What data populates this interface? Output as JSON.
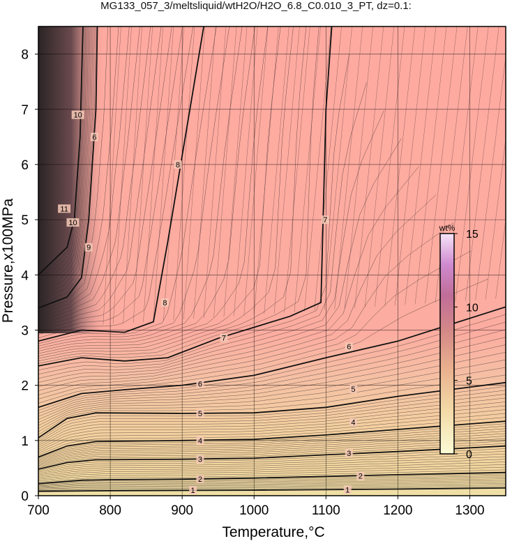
{
  "chart_data": {
    "type": "heatmap",
    "title": "MG133_057_3/meltsliquid/wtH2O/H2O_6.8_C0.010_3_PT, dz=0.1:",
    "xlabel": "Temperature,°C",
    "ylabel": "Pressure,x100MPa",
    "xlim": [
      700,
      1350
    ],
    "ylim": [
      0,
      8.5
    ],
    "xticks": [
      "700",
      "800",
      "900",
      "1000",
      "1100",
      "1200",
      "1300"
    ],
    "yticks": [
      "0",
      "1",
      "2",
      "3",
      "4",
      "5",
      "6",
      "7",
      "8"
    ],
    "grid": true,
    "colorbar": {
      "unit": "wt%",
      "range": [
        0,
        15
      ],
      "ticks": [
        "0",
        "5",
        "10",
        "15"
      ],
      "placement": "right-inside",
      "colors": [
        "#fbfbd6",
        "#f0c89a",
        "#e8a08a",
        "#c97a8e",
        "#c07ab8",
        "#f7e2f7"
      ]
    },
    "contours": [
      {
        "level": "1",
        "points": [
          [
            700,
            0.08
          ],
          [
            800,
            0.09
          ],
          [
            1000,
            0.1
          ],
          [
            1200,
            0.12
          ],
          [
            1350,
            0.14
          ]
        ]
      },
      {
        "level": "2",
        "points": [
          [
            700,
            0.22
          ],
          [
            760,
            0.28
          ],
          [
            800,
            0.29
          ],
          [
            900,
            0.3
          ],
          [
            1000,
            0.32
          ],
          [
            1100,
            0.35
          ],
          [
            1200,
            0.38
          ],
          [
            1350,
            0.42
          ]
        ]
      },
      {
        "level": "3",
        "points": [
          [
            700,
            0.48
          ],
          [
            740,
            0.6
          ],
          [
            780,
            0.65
          ],
          [
            900,
            0.66
          ],
          [
            1000,
            0.68
          ],
          [
            1100,
            0.74
          ],
          [
            1200,
            0.8
          ],
          [
            1350,
            0.9
          ]
        ]
      },
      {
        "level": "4",
        "points": [
          [
            700,
            0.7
          ],
          [
            740,
            0.9
          ],
          [
            780,
            0.98
          ],
          [
            900,
            1.0
          ],
          [
            1000,
            1.02
          ],
          [
            1100,
            1.1
          ],
          [
            1200,
            1.2
          ],
          [
            1350,
            1.35
          ]
        ]
      },
      {
        "level": "5",
        "points": [
          [
            700,
            1.05
          ],
          [
            740,
            1.4
          ],
          [
            780,
            1.5
          ],
          [
            900,
            1.49
          ],
          [
            1000,
            1.5
          ],
          [
            1100,
            1.6
          ],
          [
            1200,
            1.8
          ],
          [
            1350,
            2.05
          ]
        ]
      },
      {
        "level": "6",
        "points": [
          [
            700,
            1.6
          ],
          [
            760,
            1.85
          ],
          [
            820,
            1.92
          ],
          [
            900,
            2.0
          ],
          [
            1000,
            2.18
          ],
          [
            1100,
            2.5
          ],
          [
            1200,
            2.8
          ],
          [
            1350,
            3.42
          ]
        ]
      },
      {
        "level": "7",
        "points": [
          [
            700,
            2.35
          ],
          [
            760,
            2.5
          ],
          [
            820,
            2.44
          ],
          [
            880,
            2.5
          ],
          [
            950,
            2.85
          ],
          [
            1000,
            3.05
          ],
          [
            1050,
            3.25
          ],
          [
            1093,
            3.5
          ],
          [
            1100,
            7.0
          ],
          [
            1108,
            8.5
          ]
        ]
      },
      {
        "level": "8",
        "points": [
          [
            700,
            2.8
          ],
          [
            760,
            3.0
          ],
          [
            820,
            2.96
          ],
          [
            860,
            3.15
          ],
          [
            880,
            4.6
          ],
          [
            930,
            8.5
          ]
        ]
      },
      {
        "level": "9",
        "points": [
          [
            700,
            3.4
          ],
          [
            740,
            3.6
          ],
          [
            760,
            3.95
          ],
          [
            770,
            5.0
          ],
          [
            775,
            6.0
          ],
          [
            780,
            7.0
          ],
          [
            782,
            8.5
          ]
        ]
      },
      {
        "level": "10",
        "points": [
          [
            700,
            4.0
          ],
          [
            740,
            4.5
          ],
          [
            750,
            5.0
          ],
          [
            758,
            6.5
          ],
          [
            762,
            8.5
          ]
        ]
      }
    ],
    "labels": [
      {
        "text": "1",
        "x": 915,
        "y": 0.1
      },
      {
        "text": "1",
        "x": 1130,
        "y": 0.11
      },
      {
        "text": "2",
        "x": 925,
        "y": 0.3
      },
      {
        "text": "2",
        "x": 1148,
        "y": 0.36
      },
      {
        "text": "3",
        "x": 925,
        "y": 0.66
      },
      {
        "text": "3",
        "x": 1132,
        "y": 0.77
      },
      {
        "text": "4",
        "x": 925,
        "y": 1.0
      },
      {
        "text": "4",
        "x": 1138,
        "y": 1.33
      },
      {
        "text": "5",
        "x": 925,
        "y": 1.49
      },
      {
        "text": "5",
        "x": 1138,
        "y": 1.93
      },
      {
        "text": "6",
        "x": 925,
        "y": 2.03
      },
      {
        "text": "6",
        "x": 1132,
        "y": 2.7
      },
      {
        "text": "7",
        "x": 958,
        "y": 2.86
      },
      {
        "text": "7",
        "x": 1099,
        "y": 5.0
      },
      {
        "text": "8",
        "x": 876,
        "y": 3.5
      },
      {
        "text": "8",
        "x": 894,
        "y": 6.0
      },
      {
        "text": "9",
        "x": 770,
        "y": 4.5
      },
      {
        "text": "10",
        "x": 748,
        "y": 4.95
      },
      {
        "text": "10",
        "x": 755,
        "y": 6.9
      },
      {
        "text": "11",
        "x": 736,
        "y": 5.2
      },
      {
        "text": "6",
        "x": 778,
        "y": 6.5
      }
    ]
  }
}
